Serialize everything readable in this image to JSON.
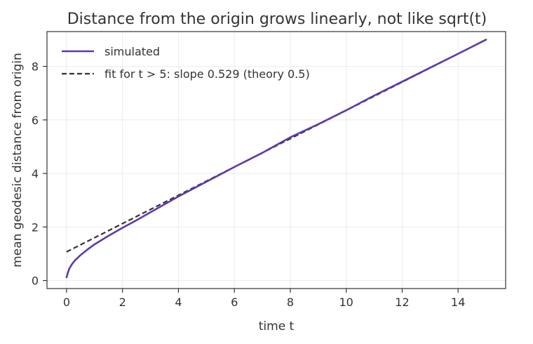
{
  "chart_data": {
    "type": "line",
    "title": "Distance from the origin grows linearly, not like sqrt(t)",
    "xlabel": "time t",
    "ylabel": "mean geodesic distance from origin",
    "xlim": [
      -0.7,
      15.7
    ],
    "ylim": [
      -0.3,
      9.3
    ],
    "x_ticks": [
      0,
      2,
      4,
      6,
      8,
      10,
      12,
      14
    ],
    "y_ticks": [
      0,
      2,
      4,
      6,
      8
    ],
    "grid": true,
    "legend_position": "top-left",
    "series": [
      {
        "name": "simulated",
        "style": "solid",
        "color": "#5e3aa8",
        "x": [
          0,
          0.05,
          0.1,
          0.2,
          0.3,
          0.5,
          0.75,
          1.0,
          1.5,
          2.0,
          2.5,
          3.0,
          4.0,
          5.0,
          6.0,
          7.0,
          8.0,
          9.0,
          10.0,
          11.0,
          12.0,
          13.0,
          14.0,
          15.0
        ],
        "y": [
          0.12,
          0.3,
          0.45,
          0.62,
          0.75,
          0.95,
          1.16,
          1.35,
          1.67,
          1.97,
          2.25,
          2.55,
          3.14,
          3.69,
          4.24,
          4.77,
          5.35,
          5.84,
          6.36,
          6.91,
          7.43,
          7.95,
          8.47,
          9.0
        ]
      },
      {
        "name": "fit for t > 5: slope 0.529 (theory 0.5)",
        "style": "dashed",
        "color": "#333333",
        "x": [
          0,
          15
        ],
        "y": [
          1.07,
          9.0
        ]
      }
    ]
  }
}
